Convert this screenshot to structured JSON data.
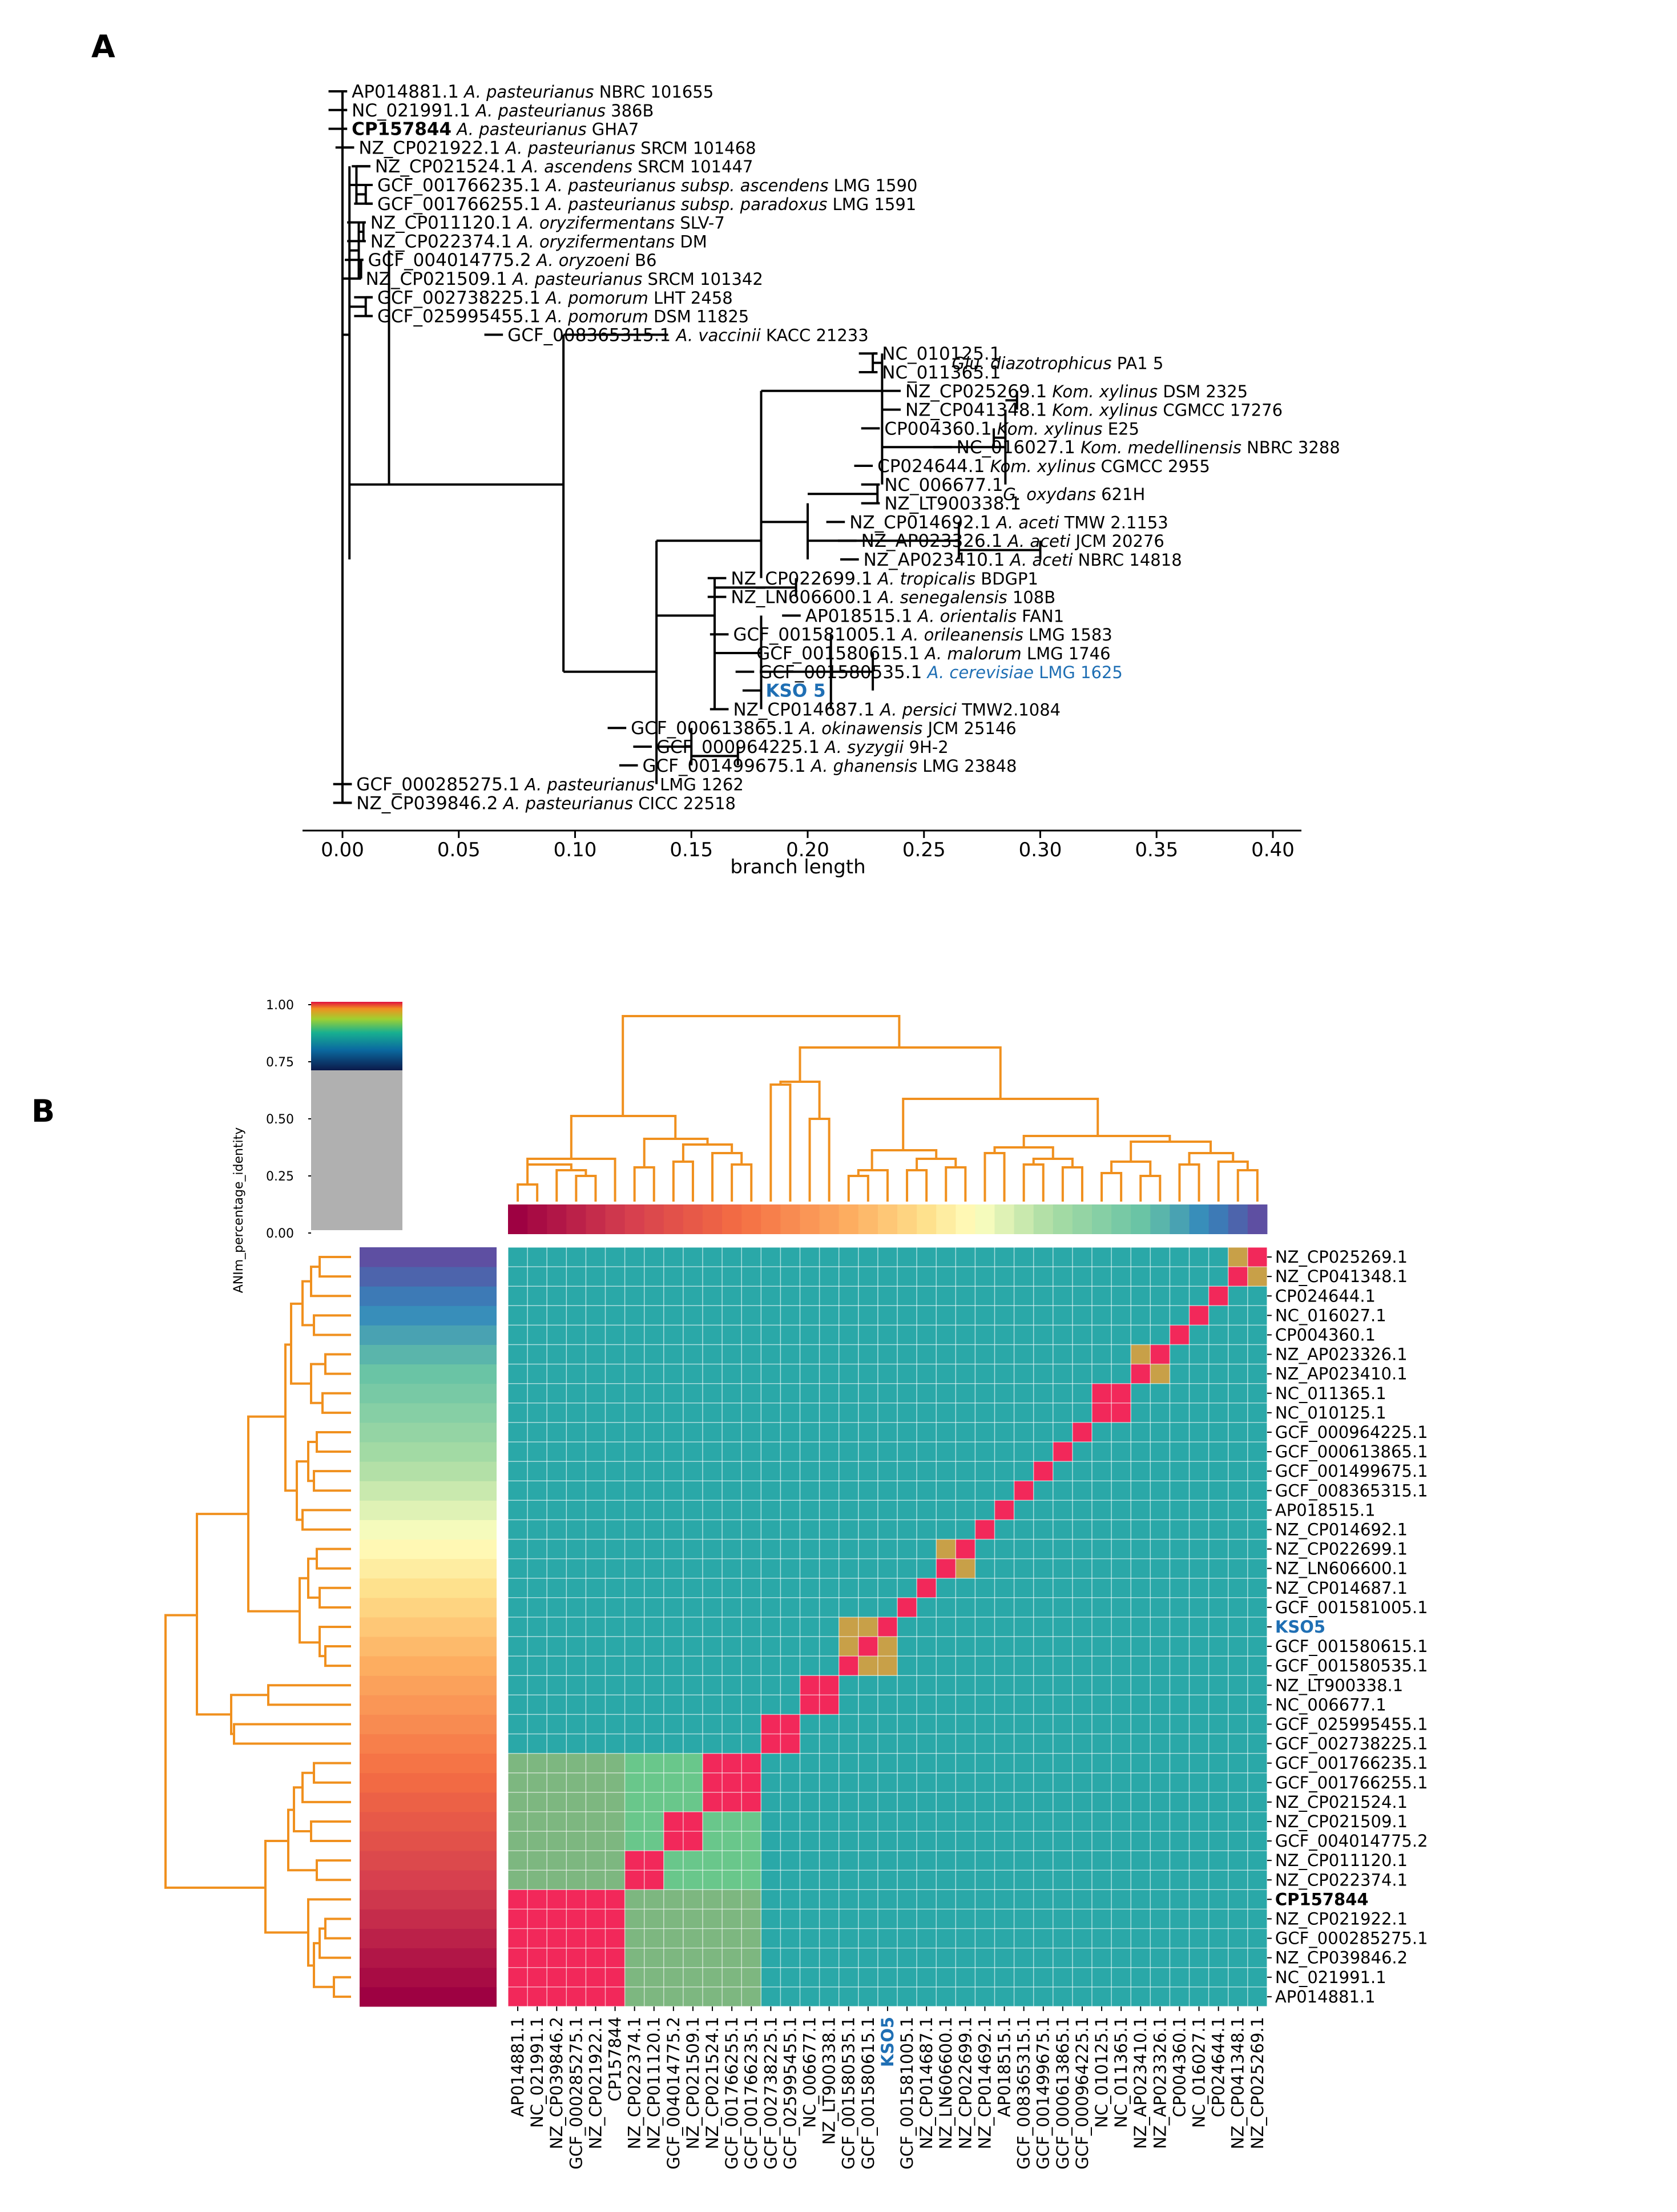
{
  "panel_a": {
    "letter": "A",
    "xaxis_label": "branch length",
    "xticks": [
      "0.00",
      "0.05",
      "0.10",
      "0.15",
      "0.20",
      "0.25",
      "0.30",
      "0.35",
      "0.40"
    ],
    "tips": [
      {
        "id": "AP014881.1",
        "species": "A. pasteurianus",
        "strain": "NBRC 101655"
      },
      {
        "id": "NC_021991.1",
        "species": "A. pasteurianus",
        "strain": "386B"
      },
      {
        "id": "CP157844",
        "species": "A. pasteurianus",
        "strain": "GHA7"
      },
      {
        "id": "NZ_CP021922.1",
        "species": "A. pasteurianus",
        "strain": "SRCM 101468"
      },
      {
        "id": "NZ_CP021524.1",
        "species": "A. ascendens",
        "strain": "SRCM 101447"
      },
      {
        "id": "GCF_001766235.1",
        "species": "A. pasteurianus subsp. ascendens",
        "strain": "LMG 1590"
      },
      {
        "id": "GCF_001766255.1",
        "species": "A. pasteurianus subsp. paradoxus",
        "strain": "LMG 1591"
      },
      {
        "id": "NZ_CP011120.1",
        "species": "A. oryzifermentans",
        "strain": "SLV-7"
      },
      {
        "id": "NZ_CP022374.1",
        "species": "A. oryzifermentans",
        "strain": "DM"
      },
      {
        "id": "GCF_004014775.2",
        "species": "A. oryzoeni",
        "strain": "B6"
      },
      {
        "id": "NZ_CP021509.1",
        "species": "A. pasteurianus",
        "strain": "SRCM 101342"
      },
      {
        "id": "GCF_002738225.1",
        "species": "A. pomorum",
        "strain": "LHT 2458"
      },
      {
        "id": "GCF_025995455.1",
        "species": "A. pomorum",
        "strain": "DSM 11825"
      },
      {
        "id": "GCF_008365315.1",
        "species": "A. vaccinii",
        "strain": "KACC 21233"
      },
      {
        "id": "NC_010125.1",
        "species": "",
        "strain": ""
      },
      {
        "id": "NC_011365.1",
        "species": "",
        "strain": ""
      },
      {
        "id": "NZ_CP025269.1",
        "species": "Kom. xylinus",
        "strain": "DSM 2325"
      },
      {
        "id": "NZ_CP041348.1",
        "species": "Kom. xylinus",
        "strain": "CGMCC 17276"
      },
      {
        "id": "CP004360.1",
        "species": "Kom. xylinus",
        "strain": "E25"
      },
      {
        "id": "NC_016027.1",
        "species": "Kom. medellinensis",
        "strain": "NBRC 3288"
      },
      {
        "id": "CP024644.1",
        "species": "Kom. xylinus",
        "strain": "CGMCC 2955"
      },
      {
        "id": "NC_006677.1",
        "species": "",
        "strain": ""
      },
      {
        "id": "NZ_LT900338.1",
        "species": "",
        "strain": ""
      },
      {
        "id": "NZ_CP014692.1",
        "species": "A. aceti",
        "strain": "TMW 2.1153"
      },
      {
        "id": "NZ_AP023326.1",
        "species": "A. aceti",
        "strain": "JCM 20276"
      },
      {
        "id": "NZ_AP023410.1",
        "species": "A. aceti",
        "strain": "NBRC 14818"
      },
      {
        "id": "NZ_CP022699.1",
        "species": "A. tropicalis",
        "strain": "BDGP1"
      },
      {
        "id": "NZ_LN606600.1",
        "species": "A. senegalensis",
        "strain": "108B"
      },
      {
        "id": "AP018515.1",
        "species": "A. orientalis",
        "strain": "FAN1"
      },
      {
        "id": "GCF_001581005.1",
        "species": "A. orileanensis",
        "strain": "LMG 1583"
      },
      {
        "id": "GCF_001580615.1",
        "species": "A. malorum",
        "strain": "LMG 1746"
      },
      {
        "id": "GCF_001580535.1",
        "species": "A. cerevisiae",
        "strain": "LMG 1625"
      },
      {
        "id": "KSO 5",
        "species": "",
        "strain": ""
      },
      {
        "id": "NZ_CP014687.1",
        "species": "A. persici",
        "strain": "TMW2.1084"
      },
      {
        "id": "GCF_000613865.1",
        "species": "A. okinawensis",
        "strain": "JCM 25146"
      },
      {
        "id": "GCF_000964225.1",
        "species": "A. syzygii",
        "strain": "9H-2"
      },
      {
        "id": "GCF_001499675.1",
        "species": "A. ghanensis",
        "strain": "LMG 23848"
      },
      {
        "id": "GCF_000285275.1",
        "species": "A. pasteurianus",
        "strain": "LMG 1262"
      },
      {
        "id": "NZ_CP039846.2",
        "species": "A. pasteurianus",
        "strain": "CICC 22518"
      }
    ],
    "glu_label": {
      "species": "Glu. diazotrophicus",
      "strain": "PA1 5"
    },
    "gox_label": {
      "species": "G. oxydans",
      "strain": "621H"
    }
  },
  "panel_b": {
    "letter": "B",
    "colorbar": {
      "label": "ANIm_percentage_identity",
      "ticks": [
        "1.00",
        "0.75",
        "0.50",
        "0.25",
        "0.00"
      ]
    },
    "labels": [
      "AP014881.1",
      "NC_021991.1",
      "NZ_CP039846.2",
      "GCF_000285275.1",
      "NZ_CP021922.1",
      "CP157844",
      "NZ_CP022374.1",
      "NZ_CP011120.1",
      "GCF_004014775.2",
      "NZ_CP021509.1",
      "NZ_CP021524.1",
      "GCF_001766255.1",
      "GCF_001766235.1",
      "GCF_002738225.1",
      "GCF_025995455.1",
      "NC_006677.1",
      "NZ_LT900338.1",
      "GCF_001580535.1",
      "GCF_001580615.1",
      "KSO5",
      "GCF_001581005.1",
      "NZ_CP014687.1",
      "NZ_LN606600.1",
      "NZ_CP022699.1",
      "NZ_CP014692.1",
      "AP018515.1",
      "GCF_008365315.1",
      "GCF_001499675.1",
      "GCF_000613865.1",
      "GCF_000964225.1",
      "NC_010125.1",
      "NC_011365.1",
      "NZ_AP023410.1",
      "NZ_AP023326.1",
      "CP004360.1",
      "NC_016027.1",
      "CP024644.1",
      "NZ_CP041348.1",
      "NZ_CP025269.1"
    ],
    "blocks": [
      {
        "range": [
          0,
          5
        ],
        "level": "high"
      },
      {
        "range": [
          6,
          7
        ],
        "level": "high"
      },
      {
        "range": [
          8,
          9
        ],
        "level": "high"
      },
      {
        "range": [
          10,
          12
        ],
        "level": "high"
      },
      {
        "range": [
          13,
          14
        ],
        "level": "high"
      },
      {
        "range": [
          15,
          16
        ],
        "level": "high"
      },
      {
        "range": [
          17,
          19
        ],
        "level": "mid"
      },
      {
        "range": [
          22,
          23
        ],
        "level": "mid"
      },
      {
        "range": [
          30,
          31
        ],
        "level": "high"
      },
      {
        "range": [
          32,
          33
        ],
        "level": "mid"
      },
      {
        "range": [
          37,
          38
        ],
        "level": "mid"
      }
    ],
    "cluster_groups": [
      {
        "rows": [
          0,
          5
        ],
        "cols": [
          0,
          12
        ],
        "level": "medium"
      },
      {
        "rows": [
          6,
          12
        ],
        "cols": [
          0,
          12
        ],
        "level": "low"
      }
    ]
  },
  "colors": {
    "dendrogram": "#f0901e",
    "highlight": "#1f6fb4",
    "base": "#2aa8a8",
    "low": "#6cc88a",
    "medium": "#e8654a",
    "mid": "#c8a048",
    "high": "#f2285a"
  }
}
